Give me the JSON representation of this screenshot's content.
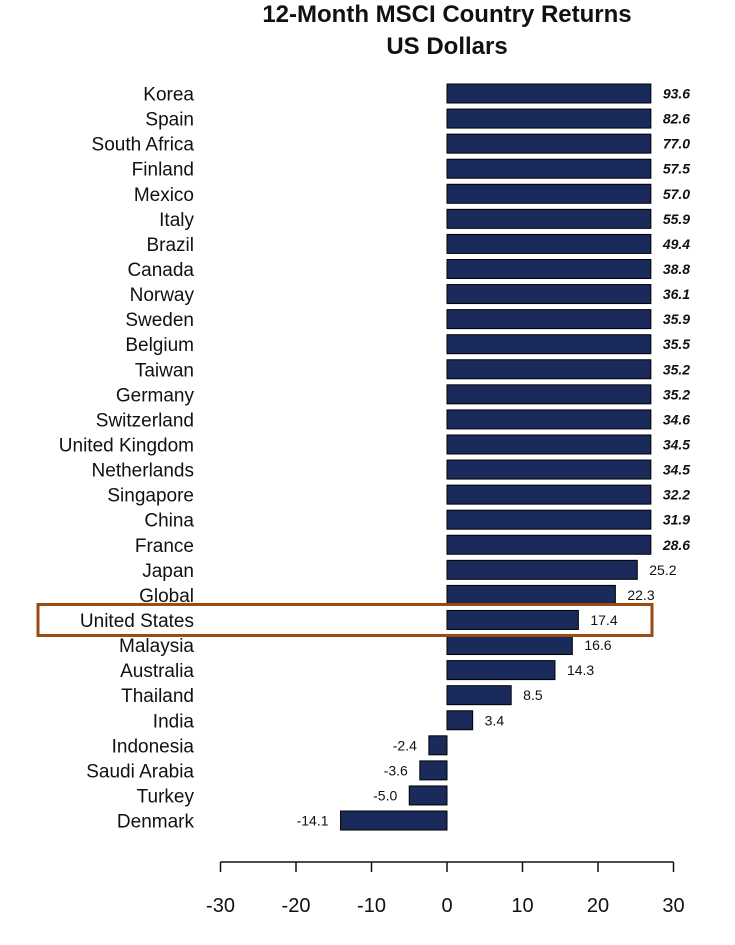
{
  "chart_data": {
    "type": "bar",
    "orientation": "horizontal",
    "title": "12-Month MSCI Country Returns",
    "subtitle": "US Dollars",
    "xlabel": "",
    "ylabel": "",
    "xlim": [
      -30,
      30
    ],
    "xticks": [
      -30,
      -20,
      -10,
      0,
      10,
      20,
      30
    ],
    "highlight": "United States",
    "categories": [
      "Korea",
      "Spain",
      "South Africa",
      "Finland",
      "Mexico",
      "Italy",
      "Brazil",
      "Canada",
      "Norway",
      "Sweden",
      "Belgium",
      "Taiwan",
      "Germany",
      "Switzerland",
      "United Kingdom",
      "Netherlands",
      "Singapore",
      "China",
      "France",
      "Japan",
      "Global",
      "United States",
      "Malaysia",
      "Australia",
      "Thailand",
      "India",
      "Indonesia",
      "Saudi Arabia",
      "Turkey",
      "Denmark"
    ],
    "values": [
      93.6,
      82.6,
      77.0,
      57.5,
      57.0,
      55.9,
      49.4,
      38.8,
      36.1,
      35.9,
      35.5,
      35.2,
      35.2,
      34.6,
      34.5,
      34.5,
      32.2,
      31.9,
      28.6,
      25.2,
      22.3,
      17.4,
      16.6,
      14.3,
      8.5,
      3.4,
      -2.4,
      -3.6,
      -5.0,
      -14.1
    ],
    "value_labels": [
      "93.6",
      "82.6",
      "77.0",
      "57.5",
      "57.0",
      "55.9",
      "49.4",
      "38.8",
      "36.1",
      "35.9",
      "35.5",
      "35.2",
      "35.2",
      "34.6",
      "34.5",
      "34.5",
      "32.2",
      "31.9",
      "28.6",
      "25.2",
      "22.3",
      "17.4",
      "16.6",
      "14.3",
      "8.5",
      "3.4",
      "-2.4",
      "-3.6",
      "-5.0",
      "-14.1"
    ],
    "truncated_above": 27.0
  },
  "colors": {
    "bar": "#1a2a5a",
    "bar_stroke": "#000000",
    "highlight_box": "#9a4a12",
    "text": "#111111",
    "axis": "#111111"
  }
}
